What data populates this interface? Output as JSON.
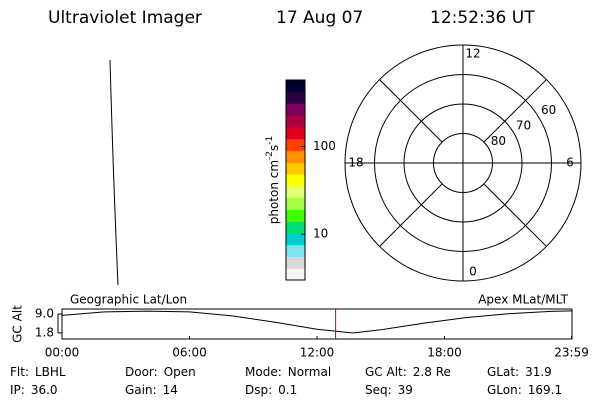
{
  "header": {
    "instrument": "Ultraviolet Imager",
    "date": "17 Aug 07",
    "time": "12:52:36 UT"
  },
  "colorbar": {
    "label": "photon cm",
    "exp1": "-2",
    "unit2": "s",
    "exp2": "-1",
    "log": true,
    "range": [
      3,
      575
    ],
    "ticks": [
      10,
      100
    ],
    "colors": [
      "#f4f4f4",
      "#d8d8d8",
      "#80e4f0",
      "#00d0d0",
      "#00e070",
      "#40ff00",
      "#a0ff40",
      "#e0ff70",
      "#ffff00",
      "#ffc800",
      "#ff9000",
      "#ff4000",
      "#e00020",
      "#b00040",
      "#800060",
      "#2a0040",
      "#000030"
    ]
  },
  "polar": {
    "lat_limit": 50,
    "lat_rings": [
      80,
      70,
      60
    ],
    "mlt_labels": [
      12,
      18,
      6,
      0
    ],
    "spoke_step_hours": 3
  },
  "map": {
    "left_label": "Geographic Lat/Lon",
    "right_label": "Apex MLat/MLT"
  },
  "timeline": {
    "ylabel": "GC Alt",
    "ylim": [
      -0.5,
      10.9
    ],
    "yticks": [
      {
        "value": 9,
        "label": "9.0"
      },
      {
        "value": 1.8,
        "label": "1.8"
      }
    ],
    "xlim": [
      0,
      24
    ],
    "xticks": [
      {
        "value": 0,
        "label": "00:00"
      },
      {
        "value": 6,
        "label": "06:00"
      },
      {
        "value": 12,
        "label": "12:00"
      },
      {
        "value": 18,
        "label": "18:00"
      },
      {
        "value": 23.98,
        "label": "23:59"
      }
    ],
    "x": [
      0,
      2,
      4,
      6,
      8,
      10,
      12,
      13.7,
      15,
      17,
      19,
      21,
      23,
      23.98
    ],
    "altitude": [
      8.5,
      9.8,
      10.1,
      9.8,
      8.3,
      5.9,
      3.2,
      1.8,
      3.0,
      5.5,
      7.6,
      9.1,
      10.0,
      10.2
    ],
    "marker_hours": 12.876,
    "marker_color": "#d00000"
  },
  "info": [
    [
      {
        "label": "Flt:",
        "value": "LBHL"
      },
      {
        "label": "Door:",
        "value": "Open"
      },
      {
        "label": "Mode:",
        "value": "Normal"
      },
      {
        "label": "GC Alt:",
        "value": "2.8 Re"
      },
      {
        "label": "GLat:",
        "value": "31.9"
      }
    ],
    [
      {
        "label": "IP:",
        "value": "36.0"
      },
      {
        "label": "Gain:",
        "value": "14"
      },
      {
        "label": "Dsp:",
        "value": "0.1"
      },
      {
        "label": "Seq:",
        "value": "39"
      },
      {
        "label": "GLon:",
        "value": "169.1"
      }
    ]
  ]
}
